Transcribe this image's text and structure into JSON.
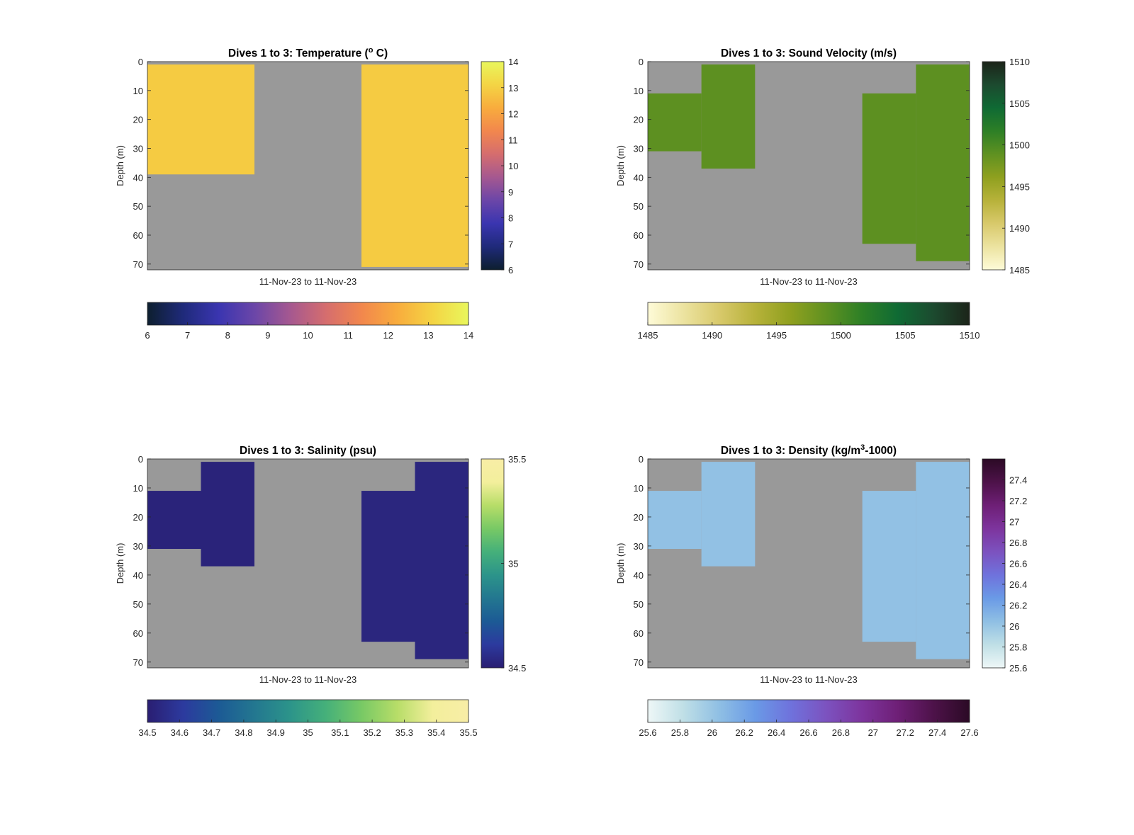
{
  "figure": {
    "background": "#ffffff",
    "nodata_color": "#999999"
  },
  "chart_data": [
    {
      "type": "heatmap",
      "title_parts": [
        {
          "text": "Dives 1 to 3: Temperature ("
        },
        {
          "text": "o",
          "sup": true
        },
        {
          "text": " C)"
        }
      ],
      "ylabel": "Depth (m)",
      "xlabel": "11-Nov-23 to 11-Nov-23",
      "y_reversed": true,
      "ylim": [
        0,
        72
      ],
      "yticks": [
        0,
        10,
        20,
        30,
        40,
        50,
        60,
        70
      ],
      "xlim": [
        0,
        6
      ],
      "clim": [
        6,
        14
      ],
      "colormap": [
        "#0d1f2f",
        "#1f2a7a",
        "#3a35b0",
        "#6b46a8",
        "#a55890",
        "#d56d6e",
        "#f2874d",
        "#f8ac3d",
        "#f4d444",
        "#e9f75c"
      ],
      "cbar_ticks": [
        6,
        7,
        8,
        9,
        10,
        11,
        12,
        13,
        14
      ],
      "hbar_ticks": [
        6,
        7,
        8,
        9,
        10,
        11,
        12,
        13,
        14
      ],
      "cells": [
        {
          "x0": 0,
          "x1": 2,
          "y0": 1,
          "y1": 39,
          "value": 12.9
        },
        {
          "x0": 4,
          "x1": 6,
          "y0": 1,
          "y1": 71,
          "value": 12.9
        }
      ]
    },
    {
      "type": "heatmap",
      "title_parts": [
        {
          "text": "Dives 1 to 3: Sound Velocity (m/s)"
        }
      ],
      "ylabel": "Depth (m)",
      "xlabel": "11-Nov-23 to 11-Nov-23",
      "y_reversed": true,
      "ylim": [
        0,
        72
      ],
      "yticks": [
        0,
        10,
        20,
        30,
        40,
        50,
        60,
        70
      ],
      "xlim": [
        0,
        6
      ],
      "clim": [
        1485,
        1510
      ],
      "colormap": [
        "#fefbd8",
        "#ece3a0",
        "#d8c96b",
        "#b7b23a",
        "#8fa01f",
        "#5f9121",
        "#2d7f26",
        "#0f6a34",
        "#1c4a2f",
        "#1c2419"
      ],
      "cbar_ticks": [
        1485,
        1490,
        1495,
        1500,
        1505,
        1510
      ],
      "hbar_ticks": [
        1485,
        1490,
        1495,
        1500,
        1505,
        1510
      ],
      "cells": [
        {
          "x0": 0,
          "x1": 1,
          "y0": 11,
          "y1": 31,
          "value": 1499
        },
        {
          "x0": 1,
          "x1": 2,
          "y0": 1,
          "y1": 37,
          "value": 1499
        },
        {
          "x0": 4,
          "x1": 5,
          "y0": 11,
          "y1": 63,
          "value": 1499
        },
        {
          "x0": 5,
          "x1": 6,
          "y0": 1,
          "y1": 69,
          "value": 1499
        }
      ]
    },
    {
      "type": "heatmap",
      "title_parts": [
        {
          "text": "Dives 1 to 3: Salinity (psu)"
        }
      ],
      "ylabel": "Depth (m)",
      "xlabel": "11-Nov-23 to 11-Nov-23",
      "y_reversed": true,
      "ylim": [
        0,
        72
      ],
      "yticks": [
        0,
        10,
        20,
        30,
        40,
        50,
        60,
        70
      ],
      "xlim": [
        0,
        6
      ],
      "clim": [
        34.5,
        35.5
      ],
      "colormap": [
        "#2a1e72",
        "#2c3a9e",
        "#1c5a95",
        "#237790",
        "#2c948a",
        "#45b07a",
        "#78c965",
        "#b7dd68",
        "#f3ef9c",
        "#f8eda6"
      ],
      "cbar_ticks": [
        34.5,
        35,
        35.5
      ],
      "hbar_ticks": [
        34.5,
        34.6,
        34.7,
        34.8,
        34.9,
        35,
        35.1,
        35.2,
        35.3,
        35.4,
        35.5
      ],
      "cells": [
        {
          "x0": 0,
          "x1": 1,
          "y0": 11,
          "y1": 31,
          "value": 34.52
        },
        {
          "x0": 1,
          "x1": 2,
          "y0": 1,
          "y1": 37,
          "value": 34.52
        },
        {
          "x0": 4,
          "x1": 5,
          "y0": 11,
          "y1": 63,
          "value": 34.53
        },
        {
          "x0": 5,
          "x1": 6,
          "y0": 1,
          "y1": 69,
          "value": 34.53
        }
      ]
    },
    {
      "type": "heatmap",
      "title_parts": [
        {
          "text": "Dives 1 to 3: Density (kg/m"
        },
        {
          "text": "3",
          "sup": true
        },
        {
          "text": "-1000)"
        }
      ],
      "ylabel": "Depth (m)",
      "xlabel": "11-Nov-23 to 11-Nov-23",
      "y_reversed": true,
      "ylim": [
        0,
        72
      ],
      "yticks": [
        0,
        10,
        20,
        30,
        40,
        50,
        60,
        70
      ],
      "xlim": [
        0,
        6
      ],
      "clim": [
        25.6,
        27.6
      ],
      "colormap": [
        "#eef7f7",
        "#bfdfe6",
        "#8fbfe4",
        "#6a9ae6",
        "#6f72dc",
        "#7c52bf",
        "#7d349d",
        "#6e1f76",
        "#4d1249",
        "#2b0a25"
      ],
      "cbar_ticks": [
        25.6,
        25.8,
        26,
        26.2,
        26.4,
        26.6,
        26.8,
        27,
        27.2,
        27.4
      ],
      "hbar_ticks": [
        25.6,
        25.8,
        26,
        26.2,
        26.4,
        26.6,
        26.8,
        27,
        27.2,
        27.4,
        27.6
      ],
      "cells": [
        {
          "x0": 0,
          "x1": 1,
          "y0": 11,
          "y1": 31,
          "value": 26.03
        },
        {
          "x0": 1,
          "x1": 2,
          "y0": 1,
          "y1": 37,
          "value": 26.03
        },
        {
          "x0": 4,
          "x1": 5,
          "y0": 11,
          "y1": 63,
          "value": 26.03
        },
        {
          "x0": 5,
          "x1": 6,
          "y0": 1,
          "y1": 69,
          "value": 26.03
        }
      ]
    }
  ]
}
